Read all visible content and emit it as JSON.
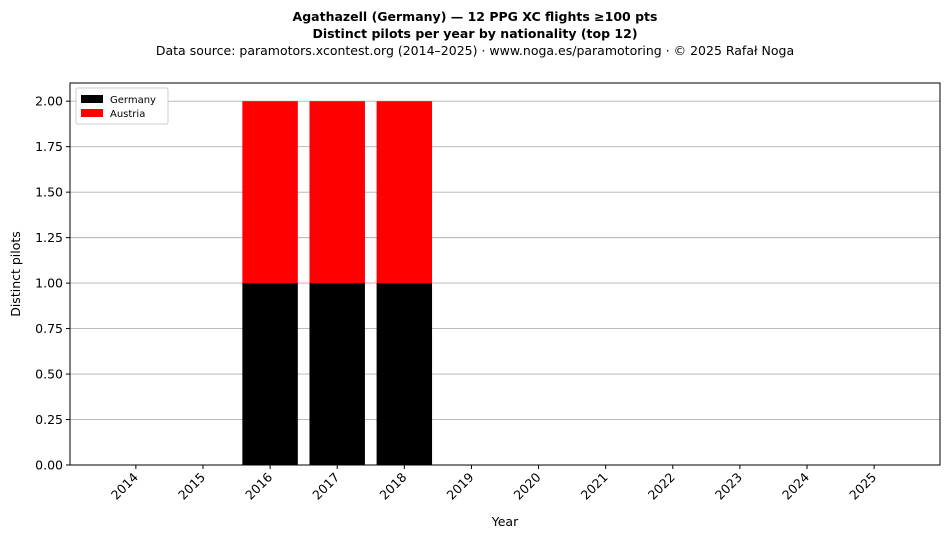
{
  "chart_data": {
    "type": "bar",
    "stacked": true,
    "title_lines": [
      "Agathazell (Germany)  —  12 PPG XC flights ≥100 pts",
      "Distinct pilots per year by nationality (top 12)"
    ],
    "subtitle": "Data source: paramotors.xcontest.org (2014–2025)  ·  www.noga.es/paramotoring  ·  © 2025 Rafał Noga",
    "xlabel": "Year",
    "ylabel": "Distinct pilots",
    "categories": [
      "2014",
      "2015",
      "2016",
      "2017",
      "2018",
      "2019",
      "2020",
      "2021",
      "2022",
      "2023",
      "2024",
      "2025"
    ],
    "series": [
      {
        "name": "Germany",
        "color": "#000000",
        "values": [
          0,
          0,
          1,
          1,
          1,
          0,
          0,
          0,
          0,
          0,
          0,
          0
        ]
      },
      {
        "name": "Austria",
        "color": "#ff0000",
        "values": [
          0,
          0,
          1,
          1,
          1,
          0,
          0,
          0,
          0,
          0,
          0,
          0
        ]
      }
    ],
    "ylim": [
      0,
      2.1
    ],
    "yticks": [
      "0.00",
      "0.25",
      "0.50",
      "0.75",
      "1.00",
      "1.25",
      "1.50",
      "1.75",
      "2.00"
    ],
    "grid": "y",
    "legend_position": "top-left"
  }
}
